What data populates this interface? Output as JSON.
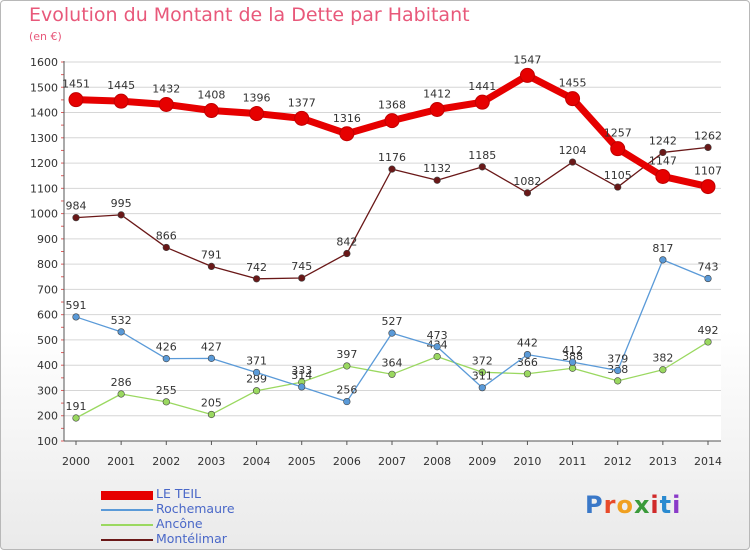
{
  "title": "Evolution du Montant de la Dette par Habitant",
  "unit_label": "(en €)",
  "logo": {
    "text": "Proxiti",
    "colors": [
      "#3a78c8",
      "#e84a2a",
      "#f0a020",
      "#3a9a3a",
      "#d02a2a",
      "#2a8ad0",
      "#8a3ac8"
    ]
  },
  "chart_data": {
    "type": "line",
    "x": [
      2000,
      2001,
      2002,
      2003,
      2004,
      2005,
      2006,
      2007,
      2008,
      2009,
      2010,
      2011,
      2012,
      2013,
      2014
    ],
    "ylim": [
      100,
      1600
    ],
    "yticks": [
      100,
      200,
      300,
      400,
      500,
      600,
      700,
      800,
      900,
      1000,
      1100,
      1200,
      1300,
      1400,
      1500,
      1600
    ],
    "grid": "horizontal",
    "legend_position": "bottom-left",
    "series": [
      {
        "name": "LE TEIL",
        "color": "#e60000",
        "values": [
          1451,
          1445,
          1432,
          1408,
          1396,
          1377,
          1316,
          1368,
          1412,
          1441,
          1547,
          1455,
          1257,
          1147,
          1107
        ]
      },
      {
        "name": "Rochemaure",
        "color": "#5a9ad8",
        "values": [
          591,
          532,
          426,
          427,
          371,
          314,
          256,
          527,
          473,
          311,
          442,
          412,
          379,
          817,
          743
        ]
      },
      {
        "name": "Ancône",
        "color": "#9ad860",
        "values": [
          191,
          286,
          255,
          205,
          299,
          333,
          397,
          364,
          434,
          372,
          366,
          388,
          338,
          382,
          492
        ]
      },
      {
        "name": "Montélimar",
        "color": "#6a1818",
        "values": [
          984,
          995,
          866,
          791,
          742,
          745,
          842,
          1176,
          1132,
          1185,
          1082,
          1204,
          1105,
          1242,
          1262
        ]
      }
    ]
  }
}
